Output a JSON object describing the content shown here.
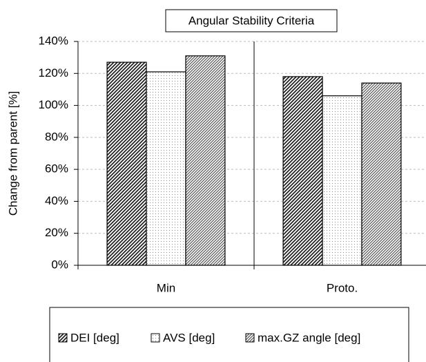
{
  "chart_data": {
    "type": "bar",
    "title": "Angular Stability Criteria",
    "ylabel": "Change from parent [%]",
    "categories": [
      "Min",
      "Proto."
    ],
    "series": [
      {
        "name": "DEI [deg]",
        "color": "#222222",
        "hatch": "diagonal-dense",
        "values": [
          127,
          118
        ]
      },
      {
        "name": "AVS [deg]",
        "color": "#888888",
        "hatch": "dots",
        "values": [
          121,
          106
        ]
      },
      {
        "name": "max.GZ angle [deg]",
        "color": "#555555",
        "hatch": "diagonal",
        "values": [
          131,
          114
        ]
      }
    ],
    "ylim": [
      0,
      140
    ],
    "yticks": [
      {
        "value": 0,
        "label": "0%"
      },
      {
        "value": 20,
        "label": "20%"
      },
      {
        "value": 40,
        "label": "40%"
      },
      {
        "value": 60,
        "label": "60%"
      },
      {
        "value": 80,
        "label": "80%"
      },
      {
        "value": 100,
        "label": "100%"
      },
      {
        "value": 120,
        "label": "120%"
      },
      {
        "value": 140,
        "label": "140%"
      }
    ],
    "grid": true,
    "legend": "bottom"
  }
}
